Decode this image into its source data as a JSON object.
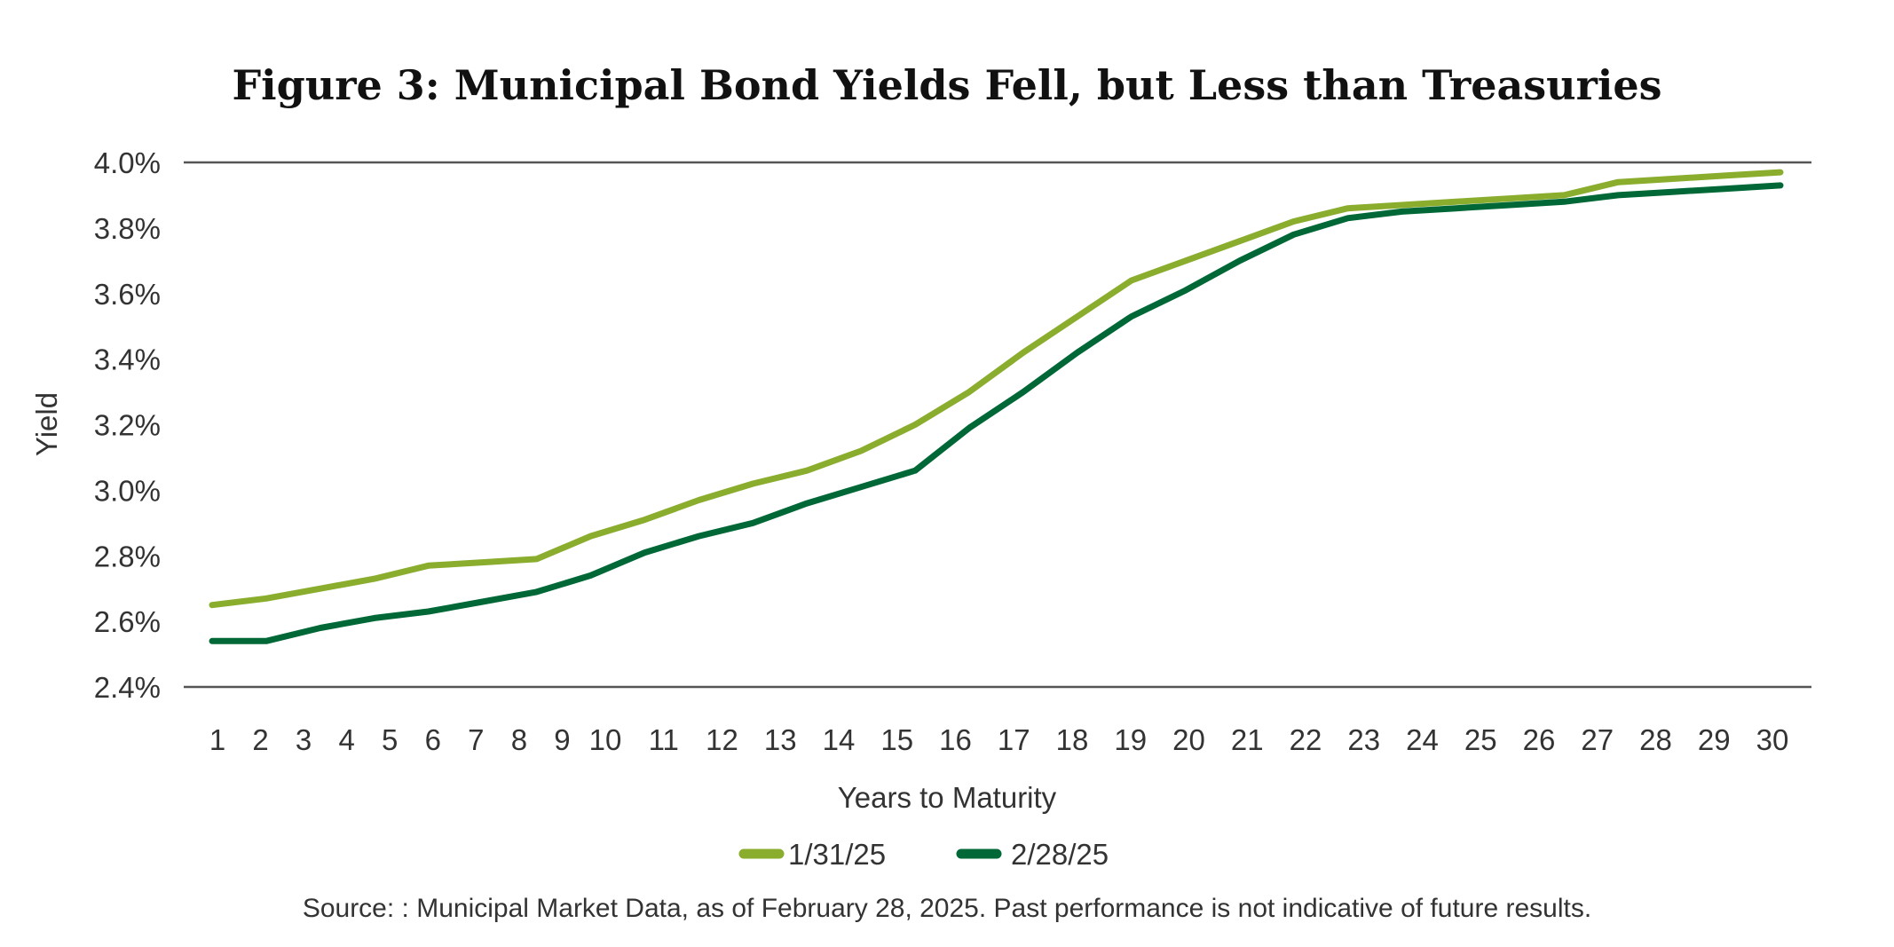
{
  "chart_data": {
    "type": "line",
    "title": "Figure 3: Municipal Bond Yields Fell, but Less than Treasuries",
    "xlabel": "Years to Maturity",
    "ylabel": "Yield",
    "ylim": [
      2.4,
      4.0
    ],
    "y_ticks": [
      2.4,
      2.6,
      2.8,
      3.0,
      3.2,
      3.4,
      3.6,
      3.8,
      4.0
    ],
    "y_tick_labels": [
      "2.4%",
      "2.6%",
      "2.8%",
      "3.0%",
      "3.2%",
      "3.4%",
      "3.6%",
      "3.8%",
      "4.0%"
    ],
    "x": [
      1,
      2,
      3,
      4,
      5,
      6,
      7,
      8,
      9,
      10,
      11,
      12,
      13,
      14,
      15,
      16,
      17,
      18,
      19,
      20,
      21,
      22,
      23,
      24,
      25,
      26,
      27,
      28,
      29,
      30
    ],
    "x_tick_labels": [
      "1",
      "2",
      "3",
      "4",
      "5",
      "6",
      "7",
      "8",
      "9",
      "10",
      "11",
      "12",
      "13",
      "14",
      "15",
      "16",
      "17",
      "18",
      "19",
      "20",
      "21",
      "22",
      "23",
      "24",
      "25",
      "26",
      "27",
      "28",
      "29",
      "30"
    ],
    "grid": "horizontal lines at 2.4% and 4.0% only",
    "legend_position": "bottom-center",
    "series": [
      {
        "name": "1/31/25",
        "color": "#8aad2e",
        "values": [
          2.65,
          2.67,
          2.7,
          2.73,
          2.77,
          2.78,
          2.79,
          2.86,
          2.91,
          2.97,
          3.02,
          3.06,
          3.12,
          3.2,
          3.3,
          3.42,
          3.53,
          3.64,
          3.7,
          3.76,
          3.82,
          3.86,
          3.87,
          3.88,
          3.89,
          3.9,
          3.94,
          3.95,
          3.96,
          3.97
        ]
      },
      {
        "name": "2/28/25",
        "color": "#006837",
        "values": [
          2.54,
          2.54,
          2.58,
          2.61,
          2.63,
          2.66,
          2.69,
          2.74,
          2.81,
          2.86,
          2.9,
          2.96,
          3.01,
          3.06,
          3.19,
          3.3,
          3.42,
          3.53,
          3.61,
          3.7,
          3.78,
          3.83,
          3.85,
          3.86,
          3.87,
          3.88,
          3.9,
          3.91,
          3.92,
          3.93
        ]
      }
    ],
    "source": "Source: : Municipal Market Data, as of February 28, 2025. Past performance is not indicative of future results."
  }
}
